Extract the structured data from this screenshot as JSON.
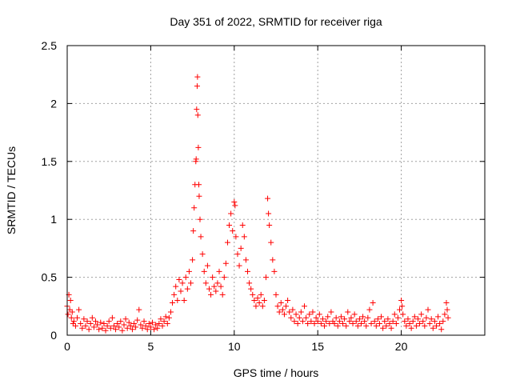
{
  "chart_data": {
    "type": "scatter",
    "title": "Day 351 of 2022, SRMTID for receiver riga",
    "xlabel": "GPS time / hours",
    "ylabel": "SRMTID / TECUs",
    "xlim": [
      0,
      25
    ],
    "ylim": [
      0,
      2.5
    ],
    "xticks": [
      0,
      5,
      10,
      15,
      20
    ],
    "xtick_labels": [
      "0",
      "5",
      "10",
      "15",
      "20"
    ],
    "yticks": [
      0,
      0.5,
      1,
      1.5,
      2,
      2.5
    ],
    "ytick_labels": [
      "0",
      "0.5",
      "1",
      "1.5",
      "2",
      "2.5"
    ],
    "grid": true,
    "marker": "plus",
    "color": "#ff0000",
    "series": [
      {
        "name": "SRMTID",
        "points": [
          [
            0.0,
            0.25
          ],
          [
            0.05,
            0.18
          ],
          [
            0.1,
            0.35
          ],
          [
            0.15,
            0.22
          ],
          [
            0.2,
            0.3
          ],
          [
            0.25,
            0.15
          ],
          [
            0.3,
            0.2
          ],
          [
            0.35,
            0.1
          ],
          [
            0.4,
            0.12
          ],
          [
            0.5,
            0.08
          ],
          [
            0.6,
            0.15
          ],
          [
            0.7,
            0.22
          ],
          [
            0.8,
            0.1
          ],
          [
            0.9,
            0.06
          ],
          [
            1.0,
            0.14
          ],
          [
            1.1,
            0.08
          ],
          [
            1.2,
            0.12
          ],
          [
            1.3,
            0.05
          ],
          [
            1.4,
            0.1
          ],
          [
            1.5,
            0.15
          ],
          [
            1.6,
            0.07
          ],
          [
            1.7,
            0.12
          ],
          [
            1.8,
            0.09
          ],
          [
            1.9,
            0.05
          ],
          [
            2.0,
            0.11
          ],
          [
            2.1,
            0.06
          ],
          [
            2.2,
            0.1
          ],
          [
            2.3,
            0.04
          ],
          [
            2.4,
            0.08
          ],
          [
            2.5,
            0.12
          ],
          [
            2.6,
            0.06
          ],
          [
            2.7,
            0.15
          ],
          [
            2.8,
            0.08
          ],
          [
            2.9,
            0.05
          ],
          [
            3.0,
            0.1
          ],
          [
            3.1,
            0.07
          ],
          [
            3.2,
            0.12
          ],
          [
            3.3,
            0.04
          ],
          [
            3.4,
            0.09
          ],
          [
            3.5,
            0.14
          ],
          [
            3.6,
            0.06
          ],
          [
            3.7,
            0.11
          ],
          [
            3.8,
            0.08
          ],
          [
            3.9,
            0.05
          ],
          [
            4.0,
            0.1
          ],
          [
            4.1,
            0.07
          ],
          [
            4.2,
            0.13
          ],
          [
            4.3,
            0.22
          ],
          [
            4.4,
            0.09
          ],
          [
            4.5,
            0.06
          ],
          [
            4.6,
            0.12
          ],
          [
            4.7,
            0.08
          ],
          [
            4.8,
            0.05
          ],
          [
            4.9,
            0.1
          ],
          [
            5.0,
            0.07
          ],
          [
            5.1,
            0.11
          ],
          [
            5.2,
            0.05
          ],
          [
            5.3,
            0.09
          ],
          [
            5.4,
            0.06
          ],
          [
            5.5,
            0.1
          ],
          [
            5.6,
            0.14
          ],
          [
            5.7,
            0.08
          ],
          [
            5.8,
            0.12
          ],
          [
            5.9,
            0.16
          ],
          [
            6.0,
            0.1
          ],
          [
            6.1,
            0.15
          ],
          [
            6.2,
            0.2
          ],
          [
            6.3,
            0.28
          ],
          [
            6.4,
            0.35
          ],
          [
            6.5,
            0.42
          ],
          [
            6.6,
            0.3
          ],
          [
            6.7,
            0.48
          ],
          [
            6.8,
            0.38
          ],
          [
            6.9,
            0.45
          ],
          [
            7.0,
            0.3
          ],
          [
            7.1,
            0.5
          ],
          [
            7.2,
            0.4
          ],
          [
            7.3,
            0.55
          ],
          [
            7.4,
            0.45
          ],
          [
            7.5,
            0.65
          ],
          [
            7.55,
            0.9
          ],
          [
            7.6,
            1.1
          ],
          [
            7.65,
            1.3
          ],
          [
            7.7,
            1.5
          ],
          [
            7.72,
            1.52
          ],
          [
            7.75,
            1.95
          ],
          [
            7.78,
            2.15
          ],
          [
            7.8,
            2.23
          ],
          [
            7.82,
            1.9
          ],
          [
            7.85,
            1.62
          ],
          [
            7.88,
            1.3
          ],
          [
            7.9,
            1.2
          ],
          [
            7.95,
            1.0
          ],
          [
            8.0,
            0.85
          ],
          [
            8.1,
            0.7
          ],
          [
            8.2,
            0.55
          ],
          [
            8.3,
            0.45
          ],
          [
            8.4,
            0.6
          ],
          [
            8.5,
            0.4
          ],
          [
            8.6,
            0.35
          ],
          [
            8.7,
            0.5
          ],
          [
            8.8,
            0.42
          ],
          [
            8.9,
            0.38
          ],
          [
            9.0,
            0.45
          ],
          [
            9.1,
            0.55
          ],
          [
            9.2,
            0.42
          ],
          [
            9.3,
            0.35
          ],
          [
            9.4,
            0.5
          ],
          [
            9.5,
            0.62
          ],
          [
            9.6,
            0.8
          ],
          [
            9.7,
            0.95
          ],
          [
            9.8,
            1.05
          ],
          [
            9.9,
            0.9
          ],
          [
            10.0,
            1.15
          ],
          [
            10.05,
            1.12
          ],
          [
            10.1,
            0.85
          ],
          [
            10.2,
            0.7
          ],
          [
            10.3,
            0.6
          ],
          [
            10.4,
            0.75
          ],
          [
            10.5,
            0.95
          ],
          [
            10.6,
            0.85
          ],
          [
            10.7,
            0.65
          ],
          [
            10.8,
            0.55
          ],
          [
            10.9,
            0.45
          ],
          [
            11.0,
            0.4
          ],
          [
            11.1,
            0.35
          ],
          [
            11.2,
            0.3
          ],
          [
            11.3,
            0.25
          ],
          [
            11.4,
            0.32
          ],
          [
            11.5,
            0.28
          ],
          [
            11.6,
            0.35
          ],
          [
            11.7,
            0.25
          ],
          [
            11.8,
            0.3
          ],
          [
            11.9,
            0.5
          ],
          [
            12.0,
            1.18
          ],
          [
            12.05,
            1.05
          ],
          [
            12.1,
            0.95
          ],
          [
            12.2,
            0.8
          ],
          [
            12.3,
            0.65
          ],
          [
            12.4,
            0.55
          ],
          [
            12.5,
            0.35
          ],
          [
            12.6,
            0.25
          ],
          [
            12.7,
            0.2
          ],
          [
            12.8,
            0.28
          ],
          [
            12.9,
            0.22
          ],
          [
            13.0,
            0.18
          ],
          [
            13.1,
            0.25
          ],
          [
            13.2,
            0.3
          ],
          [
            13.3,
            0.2
          ],
          [
            13.4,
            0.15
          ],
          [
            13.5,
            0.22
          ],
          [
            13.6,
            0.12
          ],
          [
            13.7,
            0.18
          ],
          [
            13.8,
            0.1
          ],
          [
            13.9,
            0.15
          ],
          [
            14.0,
            0.2
          ],
          [
            14.1,
            0.12
          ],
          [
            14.2,
            0.25
          ],
          [
            14.3,
            0.15
          ],
          [
            14.4,
            0.1
          ],
          [
            14.5,
            0.18
          ],
          [
            14.6,
            0.12
          ],
          [
            14.7,
            0.2
          ],
          [
            14.8,
            0.1
          ],
          [
            14.9,
            0.15
          ],
          [
            15.0,
            0.12
          ],
          [
            15.1,
            0.18
          ],
          [
            15.2,
            0.1
          ],
          [
            15.3,
            0.14
          ],
          [
            15.4,
            0.08
          ],
          [
            15.5,
            0.12
          ],
          [
            15.6,
            0.16
          ],
          [
            15.7,
            0.1
          ],
          [
            15.8,
            0.2
          ],
          [
            15.9,
            0.12
          ],
          [
            16.0,
            0.1
          ],
          [
            16.1,
            0.15
          ],
          [
            16.2,
            0.08
          ],
          [
            16.3,
            0.12
          ],
          [
            16.4,
            0.16
          ],
          [
            16.5,
            0.1
          ],
          [
            16.6,
            0.14
          ],
          [
            16.7,
            0.08
          ],
          [
            16.8,
            0.2
          ],
          [
            16.9,
            0.12
          ],
          [
            17.0,
            0.15
          ],
          [
            17.1,
            0.1
          ],
          [
            17.2,
            0.18
          ],
          [
            17.3,
            0.12
          ],
          [
            17.4,
            0.08
          ],
          [
            17.5,
            0.14
          ],
          [
            17.6,
            0.1
          ],
          [
            17.7,
            0.16
          ],
          [
            17.8,
            0.12
          ],
          [
            17.9,
            0.08
          ],
          [
            18.0,
            0.15
          ],
          [
            18.1,
            0.22
          ],
          [
            18.2,
            0.1
          ],
          [
            18.3,
            0.28
          ],
          [
            18.4,
            0.12
          ],
          [
            18.5,
            0.08
          ],
          [
            18.6,
            0.14
          ],
          [
            18.7,
            0.1
          ],
          [
            18.8,
            0.16
          ],
          [
            18.9,
            0.06
          ],
          [
            19.0,
            0.12
          ],
          [
            19.1,
            0.08
          ],
          [
            19.2,
            0.14
          ],
          [
            19.3,
            0.1
          ],
          [
            19.4,
            0.06
          ],
          [
            19.5,
            0.12
          ],
          [
            19.6,
            0.18
          ],
          [
            19.7,
            0.1
          ],
          [
            19.8,
            0.15
          ],
          [
            19.9,
            0.22
          ],
          [
            20.0,
            0.3
          ],
          [
            20.05,
            0.25
          ],
          [
            20.1,
            0.18
          ],
          [
            20.2,
            0.12
          ],
          [
            20.3,
            0.08
          ],
          [
            20.4,
            0.14
          ],
          [
            20.5,
            0.1
          ],
          [
            20.6,
            0.06
          ],
          [
            20.7,
            0.12
          ],
          [
            20.8,
            0.16
          ],
          [
            20.9,
            0.08
          ],
          [
            21.0,
            0.14
          ],
          [
            21.1,
            0.1
          ],
          [
            21.2,
            0.18
          ],
          [
            21.3,
            0.12
          ],
          [
            21.4,
            0.08
          ],
          [
            21.5,
            0.15
          ],
          [
            21.6,
            0.22
          ],
          [
            21.7,
            0.1
          ],
          [
            21.8,
            0.14
          ],
          [
            21.9,
            0.06
          ],
          [
            22.0,
            0.12
          ],
          [
            22.1,
            0.08
          ],
          [
            22.2,
            0.16
          ],
          [
            22.3,
            0.1
          ],
          [
            22.4,
            0.05
          ],
          [
            22.5,
            0.12
          ],
          [
            22.6,
            0.18
          ],
          [
            22.7,
            0.28
          ],
          [
            22.75,
            0.22
          ],
          [
            22.8,
            0.15
          ]
        ]
      }
    ]
  }
}
